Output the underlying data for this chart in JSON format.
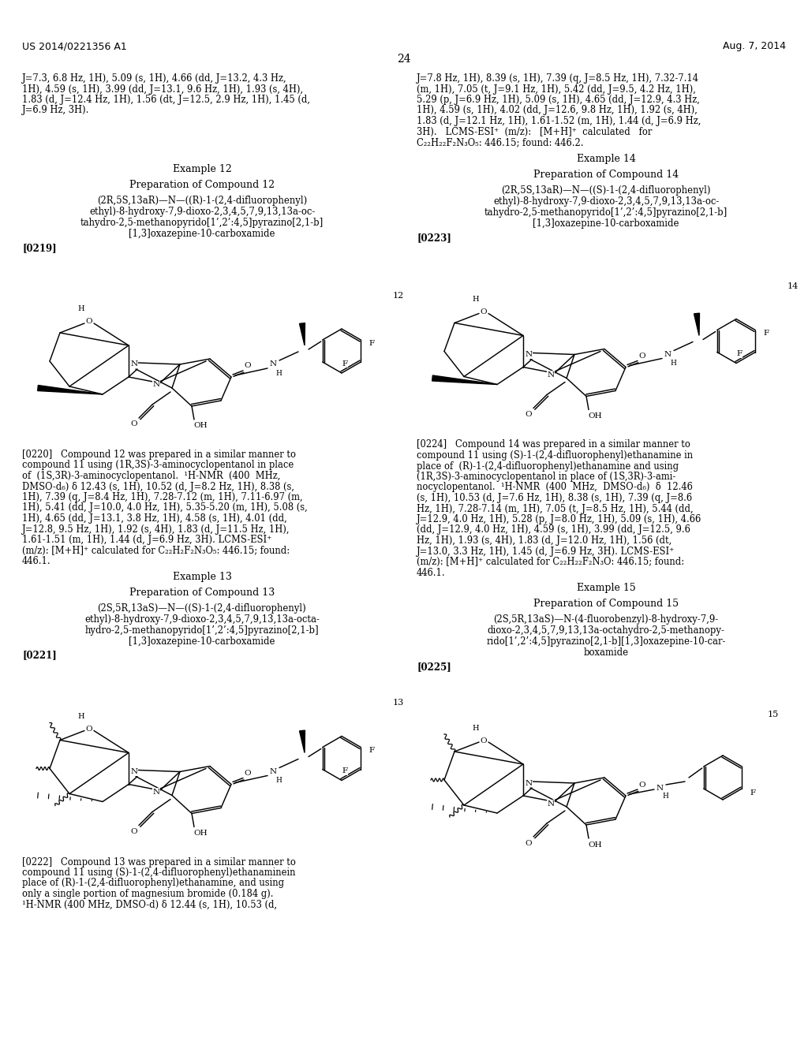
{
  "patent_num": "US 2014/0221356 A1",
  "patent_date": "Aug. 7, 2014",
  "page_num": "24",
  "bg": "#ffffff",
  "left_top_lines": [
    "J=7.3, 6.8 Hz, 1H), 5.09 (s, 1H), 4.66 (dd, J=13.2, 4.3 Hz,",
    "1H), 4.59 (s, 1H), 3.99 (dd, J=13.1, 9.6 Hz, 1H), 1.93 (s, 4H),",
    "1.83 (d, J=12.4 Hz, 1H), 1.56 (dt, J=12.5, 2.9 Hz, 1H), 1.45 (d,",
    "J=6.9 Hz, 3H)."
  ],
  "right_top_lines": [
    "J=7.8 Hz, 1H), 8.39 (s, 1H), 7.39 (q, J=8.5 Hz, 1H), 7.32-7.14",
    "(m, 1H), 7.05 (t, J=9.1 Hz, 1H), 5.42 (dd, J=9.5, 4.2 Hz, 1H),",
    "5.29 (p, J=6.9 Hz, 1H), 5.09 (s, 1H), 4.65 (dd, J=12.9, 4.3 Hz,",
    "1H), 4.59 (s, 1H), 4.02 (dd, J=12.6, 9.8 Hz, 1H), 1.92 (s, 4H),",
    "1.83 (d, J=12.1 Hz, 1H), 1.61-1.52 (m, 1H), 1.44 (d, J=6.9 Hz,",
    "3H).   LCMS-ESI⁺  (m/z):   [M+H]⁺  calculated   for",
    "C₂₂H₂₂F₂N₃O₅: 446.15; found: 446.2."
  ],
  "ex12_header": "Example 12",
  "ex12_prep": "Preparation of Compound 12",
  "ex12_name": [
    "(2R,5S,13aR)—N—((R)-1-(2,4-difluorophenyl)",
    "ethyl)-8-hydroxy-7,9-dioxo-2,3,4,5,7,9,13,13a-oc-",
    "tahydro-2,5-methanopyrido[1’,2’:4,5]pyrazino[2,1-b]",
    "[1,3]oxazepine-10-carboxamide"
  ],
  "para0219": "[0219]",
  "para0220_lines": [
    "[0220]   Compound 12 was prepared in a similar manner to",
    "compound 11 using (1R,3S)-3-aminocyclopentanol in place",
    "of  (1S,3R)-3-aminocyclopentanol.  ¹H-NMR  (400  MHz,",
    "DMSO-d₆) δ 12.43 (s, 1H), 10.52 (d, J=8.2 Hz, 1H), 8.38 (s,",
    "1H), 7.39 (q, J=8.4 Hz, 1H), 7.28-7.12 (m, 1H), 7.11-6.97 (m,",
    "1H), 5.41 (dd, J=10.0, 4.0 Hz, 1H), 5.35-5.20 (m, 1H), 5.08 (s,",
    "1H), 4.65 (dd, J=13.1, 3.8 Hz, 1H), 4.58 (s, 1H), 4.01 (dd,",
    "J=12.8, 9.5 Hz, 1H), 1.92 (s, 4H), 1.83 (d, J=11.5 Hz, 1H),",
    "1.61-1.51 (m, 1H), 1.44 (d, J=6.9 Hz, 3H). LCMS-ESI⁺",
    "(m/z): [M+H]⁺ calculated for C₂₂H₂F₂N₃O₅: 446.15; found:",
    "446.1."
  ],
  "ex13_header": "Example 13",
  "ex13_prep": "Preparation of Compound 13",
  "ex13_name": [
    "(2S,5R,13aS)—N—((S)-1-(2,4-difluorophenyl)",
    "ethyl)-8-hydroxy-7,9-dioxo-2,3,4,5,7,9,13,13a-octa-",
    "hydro-2,5-methanopyrido[1’,2’:4,5]pyrazino[2,1-b]",
    "[1,3]oxazepine-10-carboxamide"
  ],
  "para0221": "[0221]",
  "para0222_lines": [
    "[0222]   Compound 13 was prepared in a similar manner to",
    "compound 11 using (S)-1-(2,4-difluorophenyl)ethanaminein",
    "place of (R)-1-(2,4-difluorophenyl)ethanamine, and using",
    "only a single portion of magnesium bromide (0.184 g).",
    "¹H-NMR (400 MHz, DMSO-d) δ 12.44 (s, 1H), 10.53 (d,"
  ],
  "ex14_header": "Example 14",
  "ex14_prep": "Preparation of Compound 14",
  "ex14_name": [
    "(2R,5S,13aR)—N—((S)-1-(2,4-difluorophenyl)",
    "ethyl)-8-hydroxy-7,9-dioxo-2,3,4,5,7,9,13,13a-oc-",
    "tahydro-2,5-methanopyrido[1’,2’:4,5]pyrazino[2,1-b]",
    "[1,3]oxazepine-10-carboxamide"
  ],
  "para0223": "[0223]",
  "para0224_lines": [
    "[0224]   Compound 14 was prepared in a similar manner to",
    "compound 11 using (S)-1-(2,4-difluorophenyl)ethanamine in",
    "place of  (R)-1-(2,4-difluorophenyl)ethanamine and using",
    "(1R,3S)-3-aminocyclopentanol in place of (1S,3R)-3-ami-",
    "nocyclopentanol.  ¹H-NMR  (400  MHz,  DMSO-d₆)  δ  12.46",
    "(s, 1H), 10.53 (d, J=7.6 Hz, 1H), 8.38 (s, 1H), 7.39 (q, J=8.6",
    "Hz, 1H), 7.28-7.14 (m, 1H), 7.05 (t, J=8.5 Hz, 1H), 5.44 (dd,",
    "J=12.9, 4.0 Hz, 1H), 5.28 (p, J=8.0 Hz, 1H), 5.09 (s, 1H), 4.66",
    "(dd, J=12.9, 4.0 Hz, 1H), 4.59 (s, 1H), 3.99 (dd, J=12.5, 9.6",
    "Hz, 1H), 1.93 (s, 4H), 1.83 (d, J=12.0 Hz, 1H), 1.56 (dt,",
    "J=13.0, 3.3 Hz, 1H), 1.45 (d, J=6.9 Hz, 3H). LCMS-ESI⁺",
    "(m/z): [M+H]⁺ calculated for C₂₂H₂₂F₂N₃O: 446.15; found:",
    "446.1."
  ],
  "ex15_header": "Example 15",
  "ex15_prep": "Preparation of Compound 15",
  "ex15_name": [
    "(2S,5R,13aS)—N-(4-fluorobenzyl)-8-hydroxy-7,9-",
    "dioxo-2,3,4,5,7,9,13,13a-octahydro-2,5-methanopy-",
    "rido[1’,2’:4,5]pyrazino[2,1-b][1,3]oxazepine-10-car-",
    "boxamide"
  ],
  "para0225": "[0225]"
}
